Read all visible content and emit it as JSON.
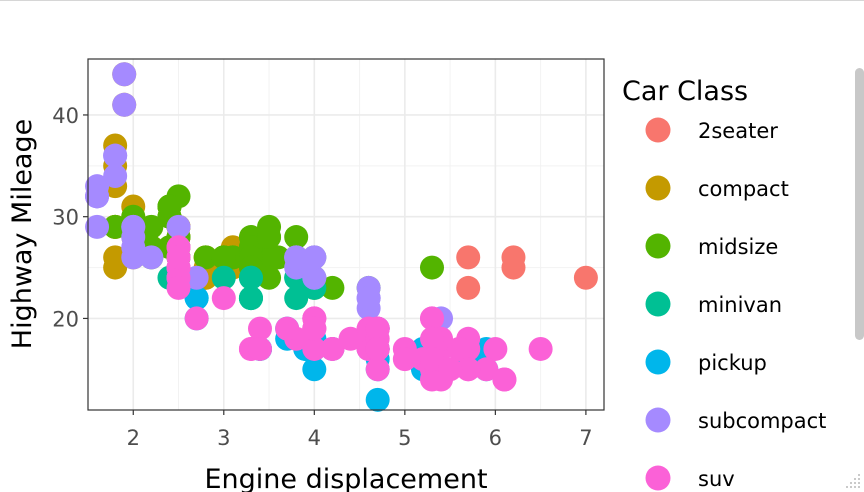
{
  "chart_data": {
    "type": "scatter",
    "title": "",
    "xlabel": "Engine displacement",
    "ylabel": "Highway Mileage",
    "xlim": [
      1.5,
      7.2
    ],
    "ylim": [
      11,
      45.5
    ],
    "x_ticks": [
      2,
      3,
      4,
      5,
      6,
      7
    ],
    "y_ticks": [
      20,
      30,
      40
    ],
    "grid": true,
    "legend": {
      "title": "Car Class",
      "placement": "right",
      "entries": [
        "2seater",
        "compact",
        "midsize",
        "minivan",
        "pickup",
        "subcompact",
        "suv"
      ]
    },
    "colors": {
      "2seater": "#F8766D",
      "compact": "#C49A00",
      "midsize": "#53B400",
      "minivan": "#00C094",
      "pickup": "#00B6EB",
      "subcompact": "#A58AFF",
      "suv": "#FB61D7"
    },
    "series": [
      {
        "name": "2seater",
        "points": [
          [
            5.7,
            26
          ],
          [
            5.7,
            23
          ],
          [
            6.2,
            26
          ],
          [
            6.2,
            25
          ],
          [
            7.0,
            24
          ]
        ]
      },
      {
        "name": "compact",
        "points": [
          [
            1.8,
            29
          ],
          [
            1.8,
            29
          ],
          [
            2.0,
            31
          ],
          [
            2.0,
            30
          ],
          [
            2.8,
            26
          ],
          [
            2.8,
            26
          ],
          [
            3.1,
            27
          ],
          [
            1.8,
            26
          ],
          [
            1.8,
            25
          ],
          [
            2.0,
            28
          ],
          [
            2.0,
            29
          ],
          [
            2.8,
            25
          ],
          [
            3.1,
            25
          ],
          [
            2.2,
            27
          ],
          [
            2.4,
            30
          ],
          [
            2.4,
            31
          ],
          [
            3.0,
            26
          ],
          [
            3.3,
            26
          ],
          [
            1.8,
            37
          ],
          [
            1.8,
            35
          ],
          [
            1.8,
            33
          ],
          [
            2.0,
            29
          ],
          [
            2.5,
            29
          ],
          [
            2.5,
            29
          ],
          [
            2.5,
            27
          ],
          [
            2.8,
            24
          ],
          [
            2.5,
            27
          ],
          [
            2.5,
            28
          ],
          [
            2.5,
            29
          ],
          [
            2.8,
            24
          ],
          [
            1.9,
            44
          ],
          [
            1.9,
            41
          ],
          [
            2.0,
            29
          ],
          [
            2.0,
            26
          ],
          [
            2.5,
            26
          ],
          [
            2.5,
            28
          ],
          [
            1.8,
            29
          ]
        ]
      },
      {
        "name": "midsize",
        "points": [
          [
            2.8,
            26
          ],
          [
            3.1,
            26
          ],
          [
            4.2,
            23
          ],
          [
            2.4,
            27
          ],
          [
            2.4,
            30
          ],
          [
            3.1,
            26
          ],
          [
            3.5,
            29
          ],
          [
            3.6,
            26
          ],
          [
            2.5,
            26
          ],
          [
            2.5,
            26
          ],
          [
            3.3,
            28
          ],
          [
            3.3,
            27
          ],
          [
            4.0,
            24
          ],
          [
            4.0,
            26
          ],
          [
            4.6,
            23
          ],
          [
            5.3,
            25
          ],
          [
            2.4,
            31
          ],
          [
            2.4,
            30
          ],
          [
            2.5,
            28
          ],
          [
            2.5,
            32
          ],
          [
            3.5,
            26
          ],
          [
            3.0,
            26
          ],
          [
            3.3,
            27
          ],
          [
            3.3,
            26
          ],
          [
            3.5,
            28
          ],
          [
            3.8,
            28
          ],
          [
            3.8,
            26
          ],
          [
            4.0,
            23
          ],
          [
            2.2,
            29
          ],
          [
            2.2,
            27
          ],
          [
            2.4,
            31
          ],
          [
            2.4,
            31
          ],
          [
            3.0,
            26
          ],
          [
            3.0,
            26
          ],
          [
            3.5,
            28
          ],
          [
            1.8,
            29
          ],
          [
            2.0,
            30
          ],
          [
            2.2,
            26
          ],
          [
            3.3,
            25
          ],
          [
            3.8,
            26
          ],
          [
            3.5,
            24
          ]
        ]
      },
      {
        "name": "minivan",
        "points": [
          [
            2.4,
            24
          ],
          [
            3.0,
            24
          ],
          [
            3.3,
            22
          ],
          [
            3.3,
            22
          ],
          [
            3.3,
            24
          ],
          [
            3.3,
            24
          ],
          [
            3.3,
            22
          ],
          [
            3.8,
            22
          ],
          [
            3.8,
            24
          ],
          [
            3.8,
            24
          ],
          [
            4.0,
            23
          ]
        ]
      },
      {
        "name": "pickup",
        "points": [
          [
            3.7,
            19
          ],
          [
            3.7,
            18
          ],
          [
            3.9,
            17
          ],
          [
            3.9,
            17
          ],
          [
            4.7,
            19
          ],
          [
            4.7,
            19
          ],
          [
            4.7,
            17
          ],
          [
            5.2,
            17
          ],
          [
            5.2,
            15
          ],
          [
            5.7,
            17
          ],
          [
            5.9,
            17
          ],
          [
            4.7,
            17
          ],
          [
            4.7,
            17
          ],
          [
            4.7,
            12
          ],
          [
            5.2,
            17
          ],
          [
            5.7,
            16
          ],
          [
            5.9,
            15
          ],
          [
            2.7,
            22
          ],
          [
            2.7,
            22
          ],
          [
            3.4,
            17
          ],
          [
            3.4,
            17
          ],
          [
            4.0,
            15
          ],
          [
            4.0,
            18
          ],
          [
            4.2,
            17
          ],
          [
            4.6,
            17
          ],
          [
            5.4,
            15
          ],
          [
            5.4,
            15
          ],
          [
            4.7,
            16
          ],
          [
            4.7,
            15
          ],
          [
            5.3,
            15
          ],
          [
            2.7,
            20
          ],
          [
            4.0,
            17
          ],
          [
            4.0,
            18
          ]
        ]
      },
      {
        "name": "subcompact",
        "points": [
          [
            3.8,
            26
          ],
          [
            3.8,
            25
          ],
          [
            4.0,
            26
          ],
          [
            4.0,
            24
          ],
          [
            4.6,
            21
          ],
          [
            4.6,
            22
          ],
          [
            4.6,
            23
          ],
          [
            4.6,
            22
          ],
          [
            5.4,
            20
          ],
          [
            1.6,
            33
          ],
          [
            1.6,
            32
          ],
          [
            1.6,
            32
          ],
          [
            1.6,
            29
          ],
          [
            1.6,
            32
          ],
          [
            1.8,
            34
          ],
          [
            1.8,
            36
          ],
          [
            1.8,
            36
          ],
          [
            2.0,
            29
          ],
          [
            2.0,
            26
          ],
          [
            2.0,
            27
          ],
          [
            2.0,
            28
          ],
          [
            2.5,
            24
          ],
          [
            2.5,
            24
          ],
          [
            2.7,
            24
          ],
          [
            2.5,
            26
          ],
          [
            2.5,
            29
          ],
          [
            1.9,
            44
          ],
          [
            1.9,
            41
          ],
          [
            2.0,
            29
          ],
          [
            2.2,
            26
          ],
          [
            2.5,
            25
          ],
          [
            2.5,
            27
          ],
          [
            3.8,
            26
          ],
          [
            3.8,
            26
          ],
          [
            4.0,
            24
          ],
          [
            4.0,
            26
          ]
        ]
      },
      {
        "name": "suv",
        "points": [
          [
            5.3,
            20
          ],
          [
            5.3,
            15
          ],
          [
            5.3,
            20
          ],
          [
            5.7,
            17
          ],
          [
            6.0,
            17
          ],
          [
            4.0,
            19
          ],
          [
            4.0,
            17
          ],
          [
            4.6,
            19
          ],
          [
            5.0,
            17
          ],
          [
            4.2,
            17
          ],
          [
            4.2,
            17
          ],
          [
            4.6,
            17
          ],
          [
            4.6,
            17
          ],
          [
            4.6,
            17
          ],
          [
            5.4,
            17
          ],
          [
            5.4,
            18
          ],
          [
            3.8,
            18
          ],
          [
            4.7,
            19
          ],
          [
            4.7,
            19
          ],
          [
            5.7,
            17
          ],
          [
            6.1,
            14
          ],
          [
            5.3,
            15
          ],
          [
            5.3,
            18
          ],
          [
            5.7,
            18
          ],
          [
            6.5,
            17
          ],
          [
            2.7,
            20
          ],
          [
            4.0,
            20
          ],
          [
            4.7,
            17
          ],
          [
            4.7,
            17
          ],
          [
            5.7,
            15
          ],
          [
            3.7,
            19
          ],
          [
            4.4,
            18
          ],
          [
            4.7,
            15
          ],
          [
            4.7,
            19
          ],
          [
            3.3,
            17
          ],
          [
            3.3,
            17
          ],
          [
            4.0,
            20
          ],
          [
            4.0,
            19
          ],
          [
            4.0,
            20
          ],
          [
            4.6,
            19
          ],
          [
            5.0,
            16
          ],
          [
            5.2,
            16
          ],
          [
            5.4,
            14
          ],
          [
            5.9,
            15
          ],
          [
            6.1,
            14
          ],
          [
            5.3,
            16
          ],
          [
            5.6,
            17
          ],
          [
            5.6,
            17
          ],
          [
            2.5,
            25
          ],
          [
            2.5,
            24
          ],
          [
            2.5,
            27
          ],
          [
            2.5,
            25
          ],
          [
            2.5,
            26
          ],
          [
            2.5,
            23
          ],
          [
            3.0,
            22
          ],
          [
            3.4,
            19
          ],
          [
            3.4,
            17
          ],
          [
            4.0,
            19
          ],
          [
            4.7,
            18
          ],
          [
            4.7,
            17
          ],
          [
            4.7,
            19
          ],
          [
            4.7,
            17
          ],
          [
            5.3,
            14
          ],
          [
            5.3,
            16
          ],
          [
            5.7,
            15
          ],
          [
            5.5,
            15
          ]
        ]
      }
    ]
  }
}
